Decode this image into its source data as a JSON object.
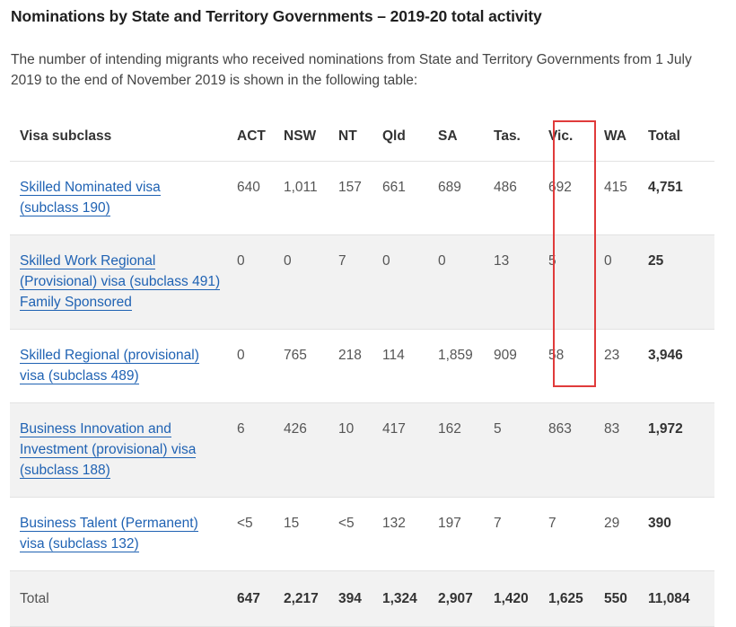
{
  "title": "Nominations by State and Territory Governments – 2019-20 total activity",
  "intro": "The number of intending migrants who received nominations from State and Territory Governments from 1 July 2019 to the end of November 2019 is shown in the following table:",
  "table": {
    "headers": [
      "Visa subclass",
      "ACT",
      "NSW",
      "NT",
      "Qld",
      "SA",
      "Tas.",
      "Vic.",
      "WA",
      "Total"
    ],
    "rows": [
      {
        "visa_lines": [
          "Skilled Nominated visa",
          "(subclass 190)"
        ],
        "values": [
          "640",
          "1,011",
          "157",
          "661",
          "689",
          "486",
          "692",
          "415",
          "4,751"
        ]
      },
      {
        "visa_lines": [
          "Skilled Work Regional",
          "(Provisional) visa (subclass 491)",
          "Family Sponsored"
        ],
        "values": [
          "0",
          "0",
          "7",
          "0",
          "0",
          "13",
          "5",
          "0",
          "25"
        ]
      },
      {
        "visa_lines": [
          "Skilled Regional (provisional)",
          "visa (subclass 489)"
        ],
        "values": [
          "0",
          "765",
          "218",
          "114",
          "1,859",
          "909",
          "58",
          "23",
          "3,946"
        ]
      },
      {
        "visa_lines": [
          "Business Innovation and",
          "Investment (provisional) visa",
          "(subclass 188)"
        ],
        "values": [
          "6",
          "426",
          "10",
          "417",
          "162",
          "5",
          "863",
          "83",
          "1,972"
        ]
      },
      {
        "visa_lines": [
          "Business Talent (Permanent)",
          "visa (subclass 132)"
        ],
        "values": [
          "<5",
          "15",
          "<5",
          "132",
          "197",
          "7",
          "7",
          "29",
          "390"
        ]
      }
    ],
    "total_row": {
      "label": "Total",
      "values": [
        "647",
        "2,217",
        "394",
        "1,324",
        "2,907",
        "1,420",
        "1,625",
        "550",
        "11,084"
      ]
    }
  },
  "colors": {
    "link": "#1f62b3",
    "highlight": "#e03b3b",
    "alt_row": "#f2f2f2"
  }
}
